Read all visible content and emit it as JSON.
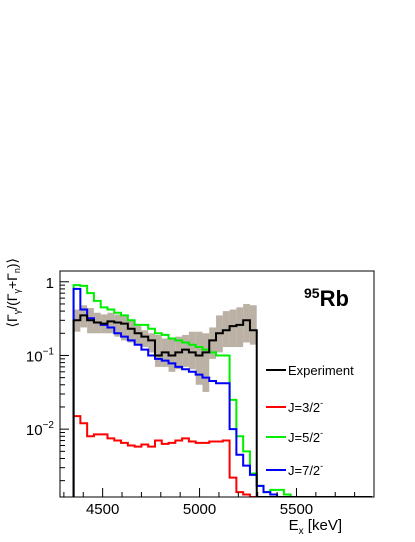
{
  "chart_data": {
    "type": "line",
    "step": true,
    "nucleus_label": {
      "mass": "95",
      "symbol": "Rb"
    },
    "ylabel_parts": [
      "⟨Γ",
      "γ",
      "/(Γ",
      "γ",
      "+Γ",
      "n",
      ")⟩"
    ],
    "xlabel_parts": [
      "E",
      "x",
      " [keV]"
    ],
    "xlim": [
      4280,
      5900
    ],
    "ylim": [
      0.0012,
      1.4
    ],
    "yscale": "log",
    "x_ticks": [
      4500,
      5000,
      5500
    ],
    "x_tick_labels": [
      "4500",
      "5000",
      "5500"
    ],
    "y_ticks": [
      1,
      0.1,
      0.01
    ],
    "y_tick_labels": [
      {
        "base": "1",
        "exp": ""
      },
      {
        "base": "10",
        "exp": "−1"
      },
      {
        "base": "10",
        "exp": "−2"
      }
    ],
    "legend_position": "right",
    "bin_edges": [
      4350,
      4385,
      4420,
      4455,
      4490,
      4525,
      4560,
      4595,
      4630,
      4665,
      4700,
      4735,
      4770,
      4805,
      4840,
      4875,
      4910,
      4945,
      4980,
      5015,
      5050,
      5085,
      5120,
      5155,
      5190,
      5225,
      5260,
      5295,
      5330,
      5365,
      5400,
      5435,
      5470,
      5505,
      5540,
      5575,
      5610,
      5645,
      5680,
      5715,
      5750,
      5785,
      5820,
      5855,
      5890
    ],
    "experiment_band": {
      "name": "Experiment uncertainty",
      "color": "#b5a99b",
      "low": [
        0.21,
        0.24,
        0.2,
        0.2,
        0.2,
        0.2,
        0.18,
        0.16,
        0.15,
        0.14,
        0.13,
        0.11,
        0.07,
        0.07,
        0.06,
        0.065,
        0.07,
        0.065,
        0.04,
        0.032,
        0.09,
        0.11,
        0.13,
        0.13,
        0.13,
        0.15,
        0.14
      ],
      "high": [
        0.42,
        0.48,
        0.44,
        0.38,
        0.36,
        0.38,
        0.36,
        0.34,
        0.3,
        0.25,
        0.22,
        0.2,
        0.19,
        0.17,
        0.17,
        0.18,
        0.19,
        0.21,
        0.21,
        0.2,
        0.24,
        0.35,
        0.4,
        0.42,
        0.45,
        0.5,
        0.48
      ]
    },
    "series": [
      {
        "name": "Experiment",
        "color": "#000000",
        "start": 0,
        "values": [
          0.3,
          0.35,
          0.3,
          0.28,
          0.27,
          0.29,
          0.28,
          0.27,
          0.23,
          0.2,
          0.18,
          0.16,
          0.1,
          0.11,
          0.1,
          0.11,
          0.12,
          0.11,
          0.1,
          0.11,
          0.16,
          0.2,
          0.22,
          0.25,
          0.26,
          0.3,
          0.22
        ]
      },
      {
        "name": "J=3/2",
        "sup": "-",
        "color": "#ff0000",
        "start": 0,
        "values": [
          0.015,
          0.012,
          0.008,
          0.0085,
          0.0085,
          0.0075,
          0.007,
          0.0065,
          0.006,
          0.0058,
          0.0062,
          0.0058,
          0.007,
          0.0063,
          0.0065,
          0.007,
          0.0075,
          0.0068,
          0.0065,
          0.0065,
          0.0068,
          0.0068,
          0.007,
          0.0022,
          0.0014,
          0.0013,
          0.0012,
          0.0012
        ]
      },
      {
        "name": "J=5/2",
        "sup": "-",
        "color": "#00ee00",
        "start": 0,
        "values": [
          0.9,
          0.88,
          0.7,
          0.55,
          0.45,
          0.42,
          0.38,
          0.35,
          0.3,
          0.26,
          0.26,
          0.23,
          0.2,
          0.19,
          0.17,
          0.16,
          0.15,
          0.14,
          0.13,
          0.12,
          0.11,
          0.1,
          0.1,
          0.025,
          0.008,
          0.005,
          0.0025,
          0.0017,
          0.0014,
          0.0015,
          0.0015,
          0.0013
        ]
      },
      {
        "name": "J=7/2",
        "sup": "-",
        "color": "#0000ff",
        "start": 0,
        "values": [
          0.8,
          0.42,
          0.32,
          0.28,
          0.26,
          0.24,
          0.2,
          0.18,
          0.16,
          0.14,
          0.12,
          0.1,
          0.09,
          0.085,
          0.078,
          0.07,
          0.065,
          0.06,
          0.055,
          0.05,
          0.045,
          0.042,
          0.042,
          0.01,
          0.0045,
          0.0032,
          0.0024,
          0.0017,
          0.0014,
          0.0013
        ]
      }
    ]
  }
}
